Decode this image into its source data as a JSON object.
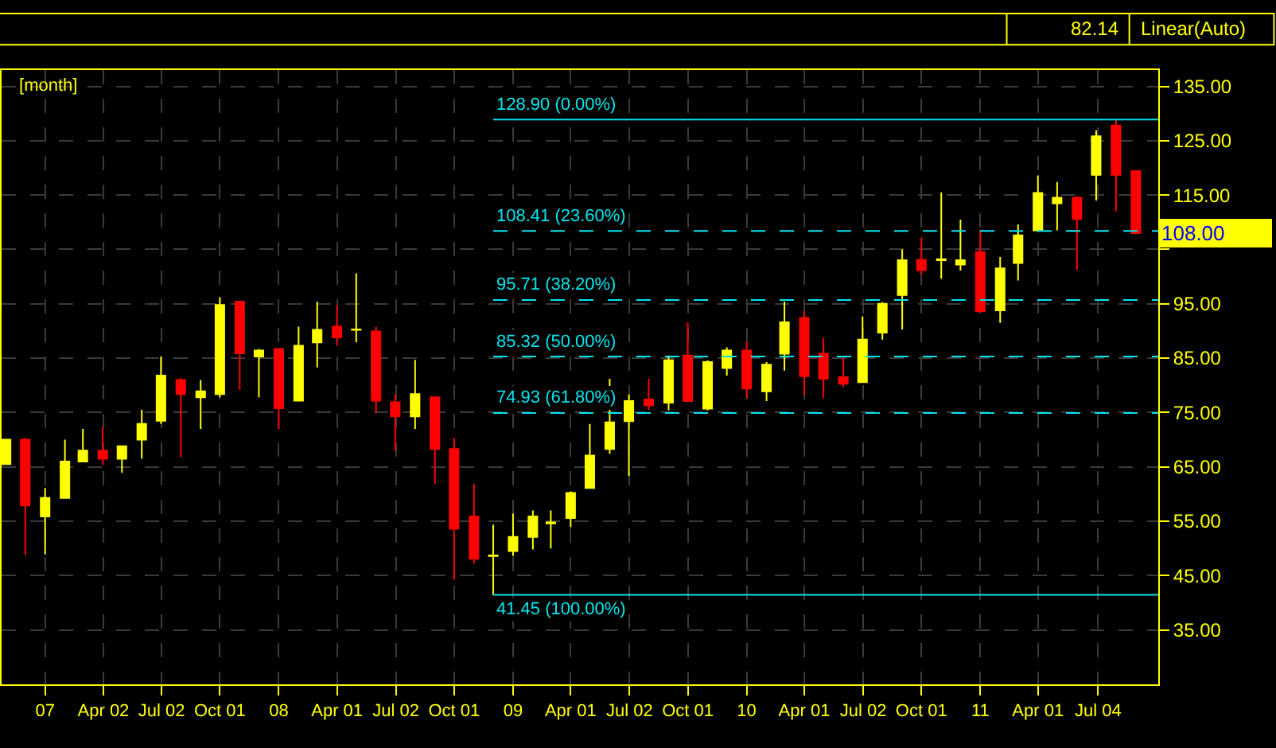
{
  "chart_data": {
    "type": "candlestick",
    "title": "[month]",
    "x": [
      "2006-11",
      "2006-12",
      "2007-01",
      "2007-02",
      "2007-03",
      "2007-04",
      "2007-05",
      "2007-06",
      "2007-07",
      "2007-08",
      "2007-09",
      "2007-10",
      "2007-11",
      "2007-12",
      "2008-01",
      "2008-02",
      "2008-03",
      "2008-04",
      "2008-05",
      "2008-06",
      "2008-07",
      "2008-08",
      "2008-09",
      "2008-10",
      "2008-11",
      "2008-12",
      "2009-01",
      "2009-02",
      "2009-03",
      "2009-04",
      "2009-05",
      "2009-06",
      "2009-07",
      "2009-08",
      "2009-09",
      "2009-10",
      "2009-11",
      "2009-12",
      "2010-01",
      "2010-02",
      "2010-03",
      "2010-04",
      "2010-05",
      "2010-06",
      "2010-07",
      "2010-08",
      "2010-09",
      "2010-10",
      "2010-11",
      "2010-12",
      "2011-01",
      "2011-02",
      "2011-03",
      "2011-04",
      "2011-05",
      "2011-06",
      "2011-07",
      "2011-08",
      "2011-09"
    ],
    "ohlc": [
      [
        65.5,
        70,
        65.5,
        70
      ],
      [
        70,
        70.3,
        48.8,
        57.9
      ],
      [
        55.9,
        61.1,
        48.9,
        59.3
      ],
      [
        59.3,
        70,
        59.3,
        66
      ],
      [
        66,
        72,
        66,
        68
      ],
      [
        68,
        72.3,
        65.4,
        66.5
      ],
      [
        66.5,
        68.8,
        63.9,
        68.8
      ],
      [
        70,
        75.5,
        66.5,
        72.9
      ],
      [
        73.5,
        85.3,
        72.9,
        81.8
      ],
      [
        81,
        81.3,
        66.8,
        78.4
      ],
      [
        77.8,
        81,
        72,
        78.9
      ],
      [
        78.4,
        96.2,
        77.8,
        94.8
      ],
      [
        95.4,
        95.4,
        79.2,
        85.9
      ],
      [
        85.3,
        86.7,
        77.8,
        86.4
      ],
      [
        86.7,
        86.7,
        72,
        75.8
      ],
      [
        77.2,
        90.8,
        77.2,
        87.3
      ],
      [
        87.9,
        95.4,
        83.3,
        90.2
      ],
      [
        90.8,
        94.8,
        87.3,
        88.8
      ],
      [
        90.2,
        100.6,
        87.9,
        90.3
      ],
      [
        89.9,
        90.8,
        74.9,
        77.2
      ],
      [
        76.9,
        78.4,
        68,
        74.3
      ],
      [
        74.3,
        84.7,
        72,
        78.4
      ],
      [
        77.8,
        77.8,
        61.9,
        68.3
      ],
      [
        68.3,
        70.3,
        44.3,
        53.6
      ],
      [
        55.9,
        61.9,
        47.2,
        48.1
      ],
      [
        48.6,
        54.4,
        41.45,
        48.7
      ],
      [
        49.5,
        56.4,
        48.6,
        52.1
      ],
      [
        52.1,
        57,
        49.8,
        55.9
      ],
      [
        54.6,
        57,
        50,
        54.8
      ],
      [
        55.6,
        60.5,
        53.9,
        60.2
      ],
      [
        61.1,
        72.9,
        61.1,
        67.1
      ],
      [
        68.3,
        81.2,
        67.4,
        73.2
      ],
      [
        73.4,
        78.3,
        63.3,
        77.1
      ],
      [
        77.4,
        81.2,
        75.4,
        76.3
      ],
      [
        76.8,
        85.5,
        75.4,
        84.6
      ],
      [
        85.5,
        91.6,
        77.1,
        77.1
      ],
      [
        75.7,
        84.6,
        75.4,
        84.3
      ],
      [
        83.2,
        87,
        81.8,
        86.4
      ],
      [
        86.4,
        88.1,
        77.7,
        79.4
      ],
      [
        78.9,
        84.3,
        77.1,
        83.8
      ],
      [
        85.8,
        95.4,
        82.7,
        91.6
      ],
      [
        92.4,
        93.7,
        78.2,
        81.7
      ],
      [
        85.8,
        88.7,
        77.7,
        81.2
      ],
      [
        81.5,
        85,
        79.7,
        80.3
      ],
      [
        80.6,
        92.7,
        80.6,
        88.4
      ],
      [
        89.7,
        95.3,
        88.4,
        95
      ],
      [
        96.6,
        105,
        90.3,
        103
      ],
      [
        103.1,
        107.2,
        100.4,
        101.2
      ],
      [
        103,
        115.5,
        99.6,
        103.2
      ],
      [
        102.2,
        110.5,
        101.1,
        103
      ],
      [
        104.5,
        108.6,
        93.6,
        93.6
      ],
      [
        93.8,
        103.6,
        91.5,
        101.5
      ],
      [
        102.5,
        109.6,
        99.3,
        107.6
      ],
      [
        108.5,
        118.6,
        108.2,
        115.4
      ],
      [
        113.5,
        117.4,
        108.5,
        114.5
      ],
      [
        114.5,
        114.8,
        101.2,
        110.6
      ],
      [
        118.7,
        126.9,
        114,
        125.8
      ],
      [
        127.8,
        128.9,
        112,
        118.7
      ],
      [
        119.4,
        119.4,
        108,
        108
      ]
    ],
    "colors": [
      "#ffff00",
      "#ff0000",
      "#ffff00",
      "#ffff00",
      "#ffff00",
      "#ff0000",
      "#ffff00",
      "#ffff00",
      "#ffff00",
      "#ff0000",
      "#ffff00",
      "#ffff00",
      "#ff0000",
      "#ffff00",
      "#ff0000",
      "#ffff00",
      "#ffff00",
      "#ff0000",
      "#ffff00",
      "#ff0000",
      "#ff0000",
      "#ffff00",
      "#ff0000",
      "#ff0000",
      "#ff0000",
      "#ffff00",
      "#ffff00",
      "#ffff00",
      "#ffff00",
      "#ffff00",
      "#ffff00",
      "#ffff00",
      "#ffff00",
      "#ff0000",
      "#ffff00",
      "#ff0000",
      "#ffff00",
      "#ffff00",
      "#ff0000",
      "#ffff00",
      "#ffff00",
      "#ff0000",
      "#ff0000",
      "#ff0000",
      "#ffff00",
      "#ffff00",
      "#ffff00",
      "#ff0000",
      "#ffff00",
      "#ffff00",
      "#ff0000",
      "#ffff00",
      "#ffff00",
      "#ffff00",
      "#ffff00",
      "#ff0000",
      "#ffff00",
      "#ff0000",
      "#ff0000"
    ],
    "xlim": [
      "2006-10-25",
      "2011-10-06"
    ],
    "xticks": [
      {
        "value": "2007-01-01",
        "label": "07"
      },
      {
        "value": "2007-04-02",
        "label": "Apr 02"
      },
      {
        "value": "2007-07-02",
        "label": "Jul 02"
      },
      {
        "value": "2007-10-01",
        "label": "Oct 01"
      },
      {
        "value": "2008-01-01",
        "label": "08"
      },
      {
        "value": "2008-04-01",
        "label": "Apr 01"
      },
      {
        "value": "2008-07-02",
        "label": "Jul 02"
      },
      {
        "value": "2008-10-01",
        "label": "Oct 01"
      },
      {
        "value": "2009-01-01",
        "label": "09"
      },
      {
        "value": "2009-04-01",
        "label": "Apr 01"
      },
      {
        "value": "2009-07-02",
        "label": "Jul 02"
      },
      {
        "value": "2009-10-01",
        "label": "Oct 01"
      },
      {
        "value": "2010-01-01",
        "label": "10"
      },
      {
        "value": "2010-04-01",
        "label": "Apr 01"
      },
      {
        "value": "2010-07-02",
        "label": "Jul 02"
      },
      {
        "value": "2010-10-01",
        "label": "Oct 01"
      },
      {
        "value": "2011-01-01",
        "label": "11"
      },
      {
        "value": "2011-04-01",
        "label": "Apr 01"
      },
      {
        "value": "2011-07-04",
        "label": "Jul 04"
      }
    ],
    "ylim": [
      25,
      138
    ],
    "yticks": [
      {
        "value": 35,
        "label": "35.00"
      },
      {
        "value": 45,
        "label": "45.00"
      },
      {
        "value": 55,
        "label": "55.00"
      },
      {
        "value": 65,
        "label": "65.00"
      },
      {
        "value": 75,
        "label": "75.00"
      },
      {
        "value": 85,
        "label": "85.00"
      },
      {
        "value": 95,
        "label": "95.00"
      },
      {
        "value": 105,
        "label": null
      },
      {
        "value": 115,
        "label": "115.00"
      },
      {
        "value": 125,
        "label": "125.00"
      },
      {
        "value": 135,
        "label": "135.00"
      }
    ],
    "grid": true,
    "ref_lines": [
      {
        "axis": "y",
        "value": 128.9,
        "label": "128.90 (0.00%)",
        "color": "#00e5ee",
        "line_style": "solid"
      },
      {
        "axis": "y",
        "value": 108.41,
        "label": "108.41 (23.60%)",
        "color": "#00e5ee",
        "line_style": "dashed"
      },
      {
        "axis": "y",
        "value": 95.71,
        "label": "95.71 (38.20%)",
        "color": "#00e5ee",
        "line_style": "dashed"
      },
      {
        "axis": "y",
        "value": 85.32,
        "label": "85.32 (50.00%)",
        "color": "#00e5ee",
        "line_style": "dashed"
      },
      {
        "axis": "y",
        "value": 74.93,
        "label": "74.93 (61.80%)",
        "color": "#00e5ee",
        "line_style": "dashed"
      },
      {
        "axis": "y",
        "value": 41.45,
        "label": "41.45 (100.00%)",
        "color": "#00e5ee",
        "line_style": "solid"
      }
    ],
    "annotations": [
      "82.14",
      "Linear(Auto)",
      "108.00"
    ]
  }
}
